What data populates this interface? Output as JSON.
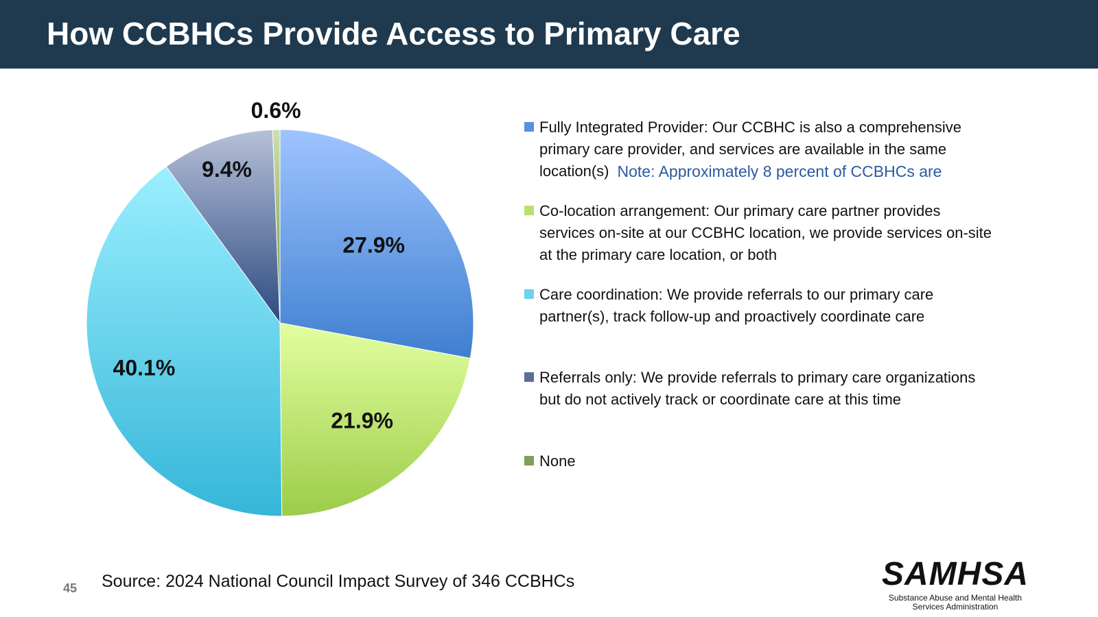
{
  "slide": {
    "title": "How CCBHCs Provide Access to Primary Care",
    "slide_number": "45",
    "source": "Source:  2024 National Council Impact Survey of 346 CCBHCs",
    "note": "Note: Approximately 8 percent of CCBHCs are",
    "logo": {
      "name": "SAMHSA",
      "subtitle_line1": "Substance Abuse and Mental Health",
      "subtitle_line2": "Services Administration"
    }
  },
  "colors": {
    "title_bar": "#1f3a4f",
    "fully_integrated": "#5b8fdf",
    "co_location": "#b9e070",
    "care_coordination": "#6fd0ef",
    "referrals_only": "#5c6d98",
    "none": "#7fa05a"
  },
  "chart_data": {
    "type": "pie",
    "title": "",
    "legend_position": "right",
    "slices": [
      {
        "key": "fully_integrated",
        "label": "27.9%",
        "value": 27.9,
        "legend": "Fully Integrated Provider: Our CCBHC is also a comprehensive primary care provider, and services are available in the same location(s)",
        "color_top": "#9ec4ff",
        "color_bottom": "#3f7fd0"
      },
      {
        "key": "co_location",
        "label": "21.9%",
        "value": 21.9,
        "legend": "Co-location arrangement: Our primary care partner provides services on-site at our CCBHC location, we provide services on-site at the primary care location, or both",
        "color_top": "#e2ffa0",
        "color_bottom": "#9ccc48"
      },
      {
        "key": "care_coordination",
        "label": "40.1%",
        "value": 40.1,
        "legend": "Care coordination: We provide referrals to our primary care partner(s), track follow-up and proactively coordinate care",
        "color_top": "#9befff",
        "color_bottom": "#35b6d8"
      },
      {
        "key": "referrals_only",
        "label": "9.4%",
        "value": 9.4,
        "legend": "Referrals only: We provide referrals to primary care organizations but do not actively track or coordinate care at this time",
        "color_top": "#b6c0d8",
        "color_bottom": "#2d4a80"
      },
      {
        "key": "none",
        "label": "0.6%",
        "value": 0.6,
        "legend": "None",
        "color_top": "#cde0a8",
        "color_bottom": "#6f8f40"
      }
    ]
  }
}
